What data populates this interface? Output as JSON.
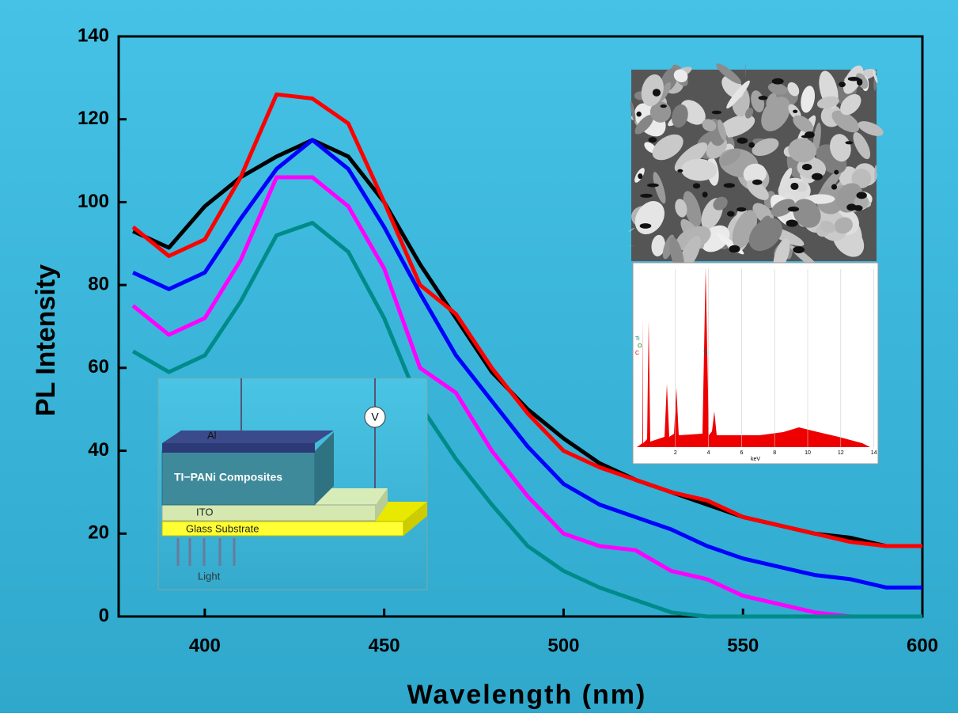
{
  "chart_data": {
    "type": "line",
    "xlabel": "Wavelength (nm)",
    "ylabel": "PL Intensity",
    "x": [
      380,
      390,
      400,
      410,
      420,
      430,
      440,
      450,
      460,
      470,
      480,
      490,
      500,
      510,
      520,
      530,
      540,
      550,
      560,
      570,
      580,
      590,
      600
    ],
    "series": [
      {
        "color": "#000000",
        "values": [
          93,
          89,
          99,
          106,
          111,
          115,
          111,
          100,
          85,
          72,
          59,
          50,
          43,
          37,
          33,
          30,
          27,
          24,
          22,
          20,
          19,
          17,
          17
        ]
      },
      {
        "color": "#ff0000",
        "values": [
          94,
          87,
          91,
          106,
          126,
          125,
          119,
          100,
          80,
          73,
          60,
          49,
          40,
          36,
          33,
          30,
          28,
          24,
          22,
          20,
          18,
          17,
          17
        ]
      },
      {
        "color": "#0000ff",
        "values": [
          83,
          79,
          83,
          96,
          108,
          115,
          108,
          94,
          78,
          63,
          52,
          41,
          32,
          27,
          24,
          21,
          17,
          14,
          12,
          10,
          9,
          7,
          7
        ]
      },
      {
        "color": "#ff00ff",
        "values": [
          75,
          68,
          72,
          86,
          106,
          106,
          99,
          84,
          60,
          54,
          40,
          29,
          20,
          17,
          16,
          11,
          9,
          5,
          3,
          1,
          0,
          0,
          0
        ]
      },
      {
        "color": "#008b8b",
        "values": [
          64,
          59,
          63,
          76,
          92,
          95,
          88,
          72,
          51,
          38,
          27,
          17,
          11,
          7,
          4,
          1,
          0,
          0,
          0,
          0,
          0,
          0,
          0
        ]
      }
    ],
    "xlim": [
      376,
      600
    ],
    "ylim": [
      0,
      140
    ],
    "xticks": [
      400,
      450,
      500,
      550,
      600
    ],
    "yticks": [
      0,
      20,
      40,
      60,
      80,
      100,
      120,
      140
    ]
  },
  "device_inset": {
    "electrode": "Al",
    "layer": "TI−PANi  Composites",
    "ito": "ITO",
    "substrate": "Glass Substrate",
    "light": "Light",
    "meter": "V"
  },
  "edx_inset": {
    "xlabel": "keV",
    "xticks": [
      2,
      4,
      6,
      8,
      10,
      12,
      14
    ],
    "peaks": [
      "Ti",
      "O",
      "C",
      "Ti"
    ]
  }
}
